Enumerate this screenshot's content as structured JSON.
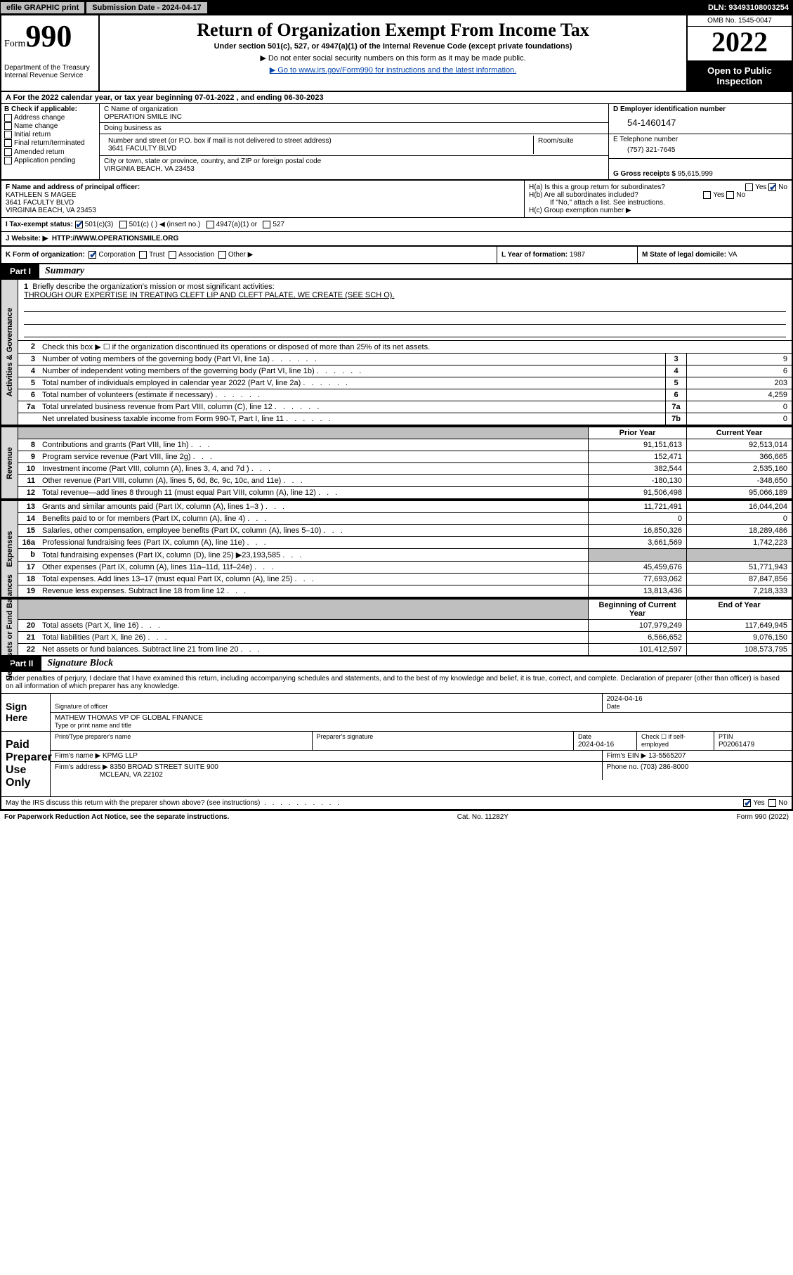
{
  "topbar": {
    "efile_btn": "efile GRAPHIC print",
    "sub_label": "Submission Date - 2024-04-17",
    "dln": "DLN: 93493108003254"
  },
  "header": {
    "form_label_small": "Form",
    "form_label_big": "990",
    "dept": "Department of the Treasury\nInternal Revenue Service",
    "title": "Return of Organization Exempt From Income Tax",
    "subtitle": "Under section 501(c), 527, or 4947(a)(1) of the Internal Revenue Code (except private foundations)",
    "note1": "▶ Do not enter social security numbers on this form as it may be made public.",
    "note2_pre": "▶ Go to ",
    "note2_link": "www.irs.gov/Form990",
    "note2_post": " for instructions and the latest information.",
    "omb": "OMB No. 1545-0047",
    "year": "2022",
    "open": "Open to Public Inspection"
  },
  "calyear": "A For the 2022 calendar year, or tax year beginning 07-01-2022     , and ending 06-30-2023",
  "boxB": {
    "header": "B Check if applicable:",
    "opts": [
      "Address change",
      "Name change",
      "Initial return",
      "Final return/terminated",
      "Amended return",
      "Application pending"
    ]
  },
  "boxC": {
    "name_lbl": "C Name of organization",
    "name": "OPERATION SMILE INC",
    "dba_lbl": "Doing business as",
    "dba": "",
    "addr_lbl": "Number and street (or P.O. box if mail is not delivered to street address)",
    "room_lbl": "Room/suite",
    "addr": "3641 FACULTY BLVD",
    "city_lbl": "City or town, state or province, country, and ZIP or foreign postal code",
    "city": "VIRGINIA BEACH, VA  23453"
  },
  "boxD": {
    "ein_lbl": "D Employer identification number",
    "ein": "54-1460147",
    "tel_lbl": "E Telephone number",
    "tel": "(757) 321-7645",
    "gross_lbl": "G Gross receipts $",
    "gross": "95,615,999"
  },
  "boxF": {
    "lbl": "F Name and address of principal officer:",
    "name": "KATHLEEN S MAGEE",
    "addr1": "3641 FACULTY BLVD",
    "addr2": "VIRGINIA BEACH, VA  23453"
  },
  "boxH": {
    "a": "H(a)  Is this a group return for subordinates?",
    "b": "H(b)  Are all subordinates included?",
    "note": "If \"No,\" attach a list. See instructions.",
    "c": "H(c)  Group exemption number ▶",
    "yes": "Yes",
    "no": "No"
  },
  "boxI": {
    "lbl": "I    Tax-exempt status:",
    "o1": "501(c)(3)",
    "o2": "501(c) (   ) ◀ (insert no.)",
    "o3": "4947(a)(1) or",
    "o4": "527"
  },
  "boxJ": {
    "lbl": "J    Website: ▶",
    "val": "HTTP://WWW.OPERATIONSMILE.ORG"
  },
  "boxK": {
    "lbl": "K Form of organization:",
    "opts": [
      "Corporation",
      "Trust",
      "Association",
      "Other ▶"
    ]
  },
  "boxL": {
    "lbl": "L Year of formation:",
    "val": "1987"
  },
  "boxM": {
    "lbl": "M State of legal domicile:",
    "val": "VA"
  },
  "part1": {
    "tag": "Part I",
    "title": "Summary"
  },
  "summary": {
    "side1": "Activities & Governance",
    "side2": "Revenue",
    "side3": "Expenses",
    "side4": "Net Assets or Fund Balances",
    "l1_lbl": "Briefly describe the organization's mission or most significant activities:",
    "l1_val": "THROUGH OUR EXPERTISE IN TREATING CLEFT LIP AND CLEFT PALATE, WE CREATE (SEE SCH O).",
    "l2": "Check this box ▶ ☐  if the organization discontinued its operations or disposed of more than 25% of its net assets.",
    "rowsA": [
      {
        "n": "3",
        "d": "Number of voting members of the governing body (Part VI, line 1a)",
        "b": "3",
        "v": "9"
      },
      {
        "n": "4",
        "d": "Number of independent voting members of the governing body (Part VI, line 1b)",
        "b": "4",
        "v": "6"
      },
      {
        "n": "5",
        "d": "Total number of individuals employed in calendar year 2022 (Part V, line 2a)",
        "b": "5",
        "v": "203"
      },
      {
        "n": "6",
        "d": "Total number of volunteers (estimate if necessary)",
        "b": "6",
        "v": "4,259"
      },
      {
        "n": "7a",
        "d": "Total unrelated business revenue from Part VIII, column (C), line 12",
        "b": "7a",
        "v": "0"
      },
      {
        "n": "",
        "d": "Net unrelated business taxable income from Form 990-T, Part I, line 11",
        "b": "7b",
        "v": "0"
      }
    ],
    "hdr_prior": "Prior Year",
    "hdr_curr": "Current Year",
    "rowsR": [
      {
        "n": "8",
        "d": "Contributions and grants (Part VIII, line 1h)",
        "p": "91,151,613",
        "c": "92,513,014"
      },
      {
        "n": "9",
        "d": "Program service revenue (Part VIII, line 2g)",
        "p": "152,471",
        "c": "366,665"
      },
      {
        "n": "10",
        "d": "Investment income (Part VIII, column (A), lines 3, 4, and 7d )",
        "p": "382,544",
        "c": "2,535,160"
      },
      {
        "n": "11",
        "d": "Other revenue (Part VIII, column (A), lines 5, 6d, 8c, 9c, 10c, and 11e)",
        "p": "-180,130",
        "c": "-348,650"
      },
      {
        "n": "12",
        "d": "Total revenue—add lines 8 through 11 (must equal Part VIII, column (A), line 12)",
        "p": "91,506,498",
        "c": "95,066,189"
      }
    ],
    "rowsE": [
      {
        "n": "13",
        "d": "Grants and similar amounts paid (Part IX, column (A), lines 1–3 )",
        "p": "11,721,491",
        "c": "16,044,204"
      },
      {
        "n": "14",
        "d": "Benefits paid to or for members (Part IX, column (A), line 4)",
        "p": "0",
        "c": "0"
      },
      {
        "n": "15",
        "d": "Salaries, other compensation, employee benefits (Part IX, column (A), lines 5–10)",
        "p": "16,850,326",
        "c": "18,289,486"
      },
      {
        "n": "16a",
        "d": "Professional fundraising fees (Part IX, column (A), line 11e)",
        "p": "3,661,569",
        "c": "1,742,223"
      },
      {
        "n": "b",
        "d": "Total fundraising expenses (Part IX, column (D), line 25) ▶23,193,585",
        "p": "shade",
        "c": "shade"
      },
      {
        "n": "17",
        "d": "Other expenses (Part IX, column (A), lines 11a–11d, 11f–24e)",
        "p": "45,459,676",
        "c": "51,771,943"
      },
      {
        "n": "18",
        "d": "Total expenses. Add lines 13–17 (must equal Part IX, column (A), line 25)",
        "p": "77,693,062",
        "c": "87,847,856"
      },
      {
        "n": "19",
        "d": "Revenue less expenses. Subtract line 18 from line 12",
        "p": "13,813,436",
        "c": "7,218,333"
      }
    ],
    "hdr_beg": "Beginning of Current Year",
    "hdr_end": "End of Year",
    "rowsN": [
      {
        "n": "20",
        "d": "Total assets (Part X, line 16)",
        "p": "107,979,249",
        "c": "117,649,945"
      },
      {
        "n": "21",
        "d": "Total liabilities (Part X, line 26)",
        "p": "6,566,652",
        "c": "9,076,150"
      },
      {
        "n": "22",
        "d": "Net assets or fund balances. Subtract line 21 from line 20",
        "p": "101,412,597",
        "c": "108,573,795"
      }
    ]
  },
  "part2": {
    "tag": "Part II",
    "title": "Signature Block"
  },
  "sig": {
    "decl": "Under penalties of perjury, I declare that I have examined this return, including accompanying schedules and statements, and to the best of my knowledge and belief, it is true, correct, and complete. Declaration of preparer (other than officer) is based on all information of which preparer has any knowledge.",
    "sign_here": "Sign Here",
    "sig_officer": "Signature of officer",
    "date": "Date",
    "date_val": "2024-04-16",
    "name_title": "MATHEW THOMAS  VP OF GLOBAL FINANCE",
    "name_lbl": "Type or print name and title",
    "paid": "Paid Preparer Use Only",
    "p_name_lbl": "Print/Type preparer's name",
    "p_sig_lbl": "Preparer's signature",
    "p_date_lbl": "Date",
    "p_date": "2024-04-16",
    "p_check": "Check ☐ if self-employed",
    "ptin_lbl": "PTIN",
    "ptin": "P02061479",
    "firm_name_lbl": "Firm's name    ▶",
    "firm_name": "KPMG LLP",
    "firm_ein_lbl": "Firm's EIN ▶",
    "firm_ein": "13-5565207",
    "firm_addr_lbl": "Firm's address ▶",
    "firm_addr1": "8350 BROAD STREET SUITE 900",
    "firm_addr2": "MCLEAN, VA  22102",
    "phone_lbl": "Phone no.",
    "phone": "(703) 286-8000",
    "may": "May the IRS discuss this return with the preparer shown above? (see instructions)",
    "may_yes": "Yes",
    "may_no": "No"
  },
  "footer": {
    "l": "For Paperwork Reduction Act Notice, see the separate instructions.",
    "m": "Cat. No. 11282Y",
    "r": "Form 990 (2022)"
  }
}
